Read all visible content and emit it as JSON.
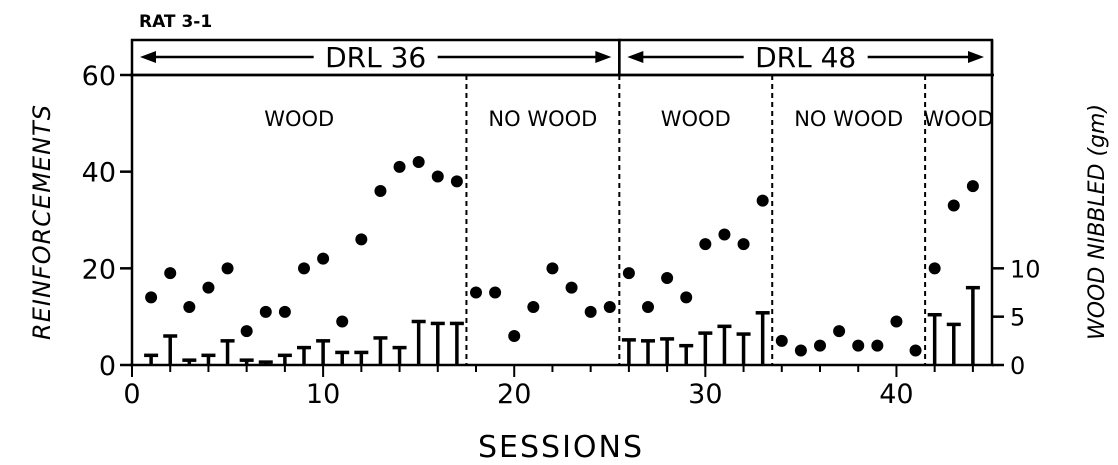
{
  "chart_data": {
    "type": "scatter",
    "title": "RAT 3-1",
    "xlabel": "SESSIONS",
    "ylabel": "REINFORCEMENTS",
    "y2label": "WOOD NIBBLED (gm)",
    "xlim": [
      0,
      45
    ],
    "ylim": [
      0,
      60
    ],
    "y2lim": [
      0,
      30
    ],
    "xticks": [
      0,
      10,
      20,
      30,
      40
    ],
    "yticks": [
      0,
      20,
      40,
      60
    ],
    "y2ticks": [
      0,
      5,
      10
    ],
    "schedules": [
      {
        "label": "DRL 36",
        "start": 0,
        "end": 25.5
      },
      {
        "label": "DRL 48",
        "start": 25.5,
        "end": 45
      }
    ],
    "phases": [
      {
        "label": "WOOD",
        "start": 0,
        "end": 17.5
      },
      {
        "label": "NO WOOD",
        "start": 17.5,
        "end": 25.5
      },
      {
        "label": "WOOD",
        "start": 25.5,
        "end": 33.5
      },
      {
        "label": "NO WOOD",
        "start": 33.5,
        "end": 41.5
      },
      {
        "label": "WOOD",
        "start": 41.5,
        "end": 45
      }
    ],
    "phase_boundaries": [
      17.5,
      25.5,
      33.5,
      41.5
    ],
    "series": [
      {
        "type": "scatter",
        "axis": "left",
        "x": [
          1,
          2,
          3,
          4,
          5,
          6,
          7,
          8,
          9,
          10,
          11,
          12,
          13,
          14,
          15,
          16,
          17,
          18,
          19,
          20,
          21,
          22,
          23,
          24,
          25,
          26,
          27,
          28,
          29,
          30,
          31,
          32,
          33,
          34,
          35,
          36,
          37,
          38,
          39,
          40,
          41,
          42,
          43,
          44
        ],
        "values": [
          14,
          19,
          12,
          16,
          20,
          7,
          11,
          11,
          20,
          22,
          9,
          26,
          36,
          41,
          42,
          39,
          38,
          15,
          15,
          6,
          12,
          20,
          16,
          11,
          12,
          19,
          12,
          18,
          14,
          25,
          27,
          25,
          34,
          5,
          3,
          4,
          7,
          4,
          4,
          9,
          3,
          20,
          33,
          37
        ]
      },
      {
        "type": "bar",
        "axis": "right",
        "x": [
          1,
          2,
          3,
          4,
          5,
          6,
          7,
          8,
          9,
          10,
          11,
          12,
          13,
          14,
          15,
          16,
          17,
          26,
          27,
          28,
          29,
          30,
          31,
          32,
          33,
          42,
          43,
          44
        ],
        "values": [
          1,
          3,
          0.5,
          1,
          2.5,
          0.5,
          0.3,
          1,
          1.8,
          2.5,
          1.3,
          1.3,
          2.8,
          1.8,
          4.5,
          4.3,
          4.3,
          2.6,
          2.5,
          2.7,
          2,
          3.3,
          4,
          3.2,
          5.4,
          5.2,
          4.2,
          8
        ]
      }
    ]
  }
}
